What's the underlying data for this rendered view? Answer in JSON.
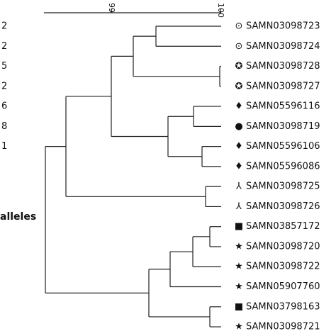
{
  "scale": {
    "ticks": [
      "99",
      "100"
    ]
  },
  "side_labels": [
    "2",
    "2",
    "5",
    "2",
    "6",
    "8",
    "1"
  ],
  "side_caption": "alleles",
  "leaves": [
    {
      "symbol": "⊙",
      "label": "SAMN03098723"
    },
    {
      "symbol": "⊙",
      "label": "SAMN03098724"
    },
    {
      "symbol": "✪",
      "label": "SAMN03098728"
    },
    {
      "symbol": "✪",
      "label": "SAMN03098727"
    },
    {
      "symbol": "♦",
      "label": "SAMN05596116"
    },
    {
      "symbol": "●",
      "label": "SAMN03098719"
    },
    {
      "symbol": "♦",
      "label": "SAMN05596106"
    },
    {
      "symbol": "♦",
      "label": "SAMN05596086"
    },
    {
      "symbol": "⅄",
      "label": "SAMN03098725"
    },
    {
      "symbol": "⅄",
      "label": "SAMN03098726"
    },
    {
      "symbol": "■",
      "label": "SAMN03857172"
    },
    {
      "symbol": "★",
      "label": "SAMN03098720"
    },
    {
      "symbol": "★",
      "label": "SAMN03098722"
    },
    {
      "symbol": "★",
      "label": "SAMN05907760"
    },
    {
      "symbol": "■",
      "label": "SAMN03798163"
    },
    {
      "symbol": "★",
      "label": "SAMN03098721"
    }
  ]
}
